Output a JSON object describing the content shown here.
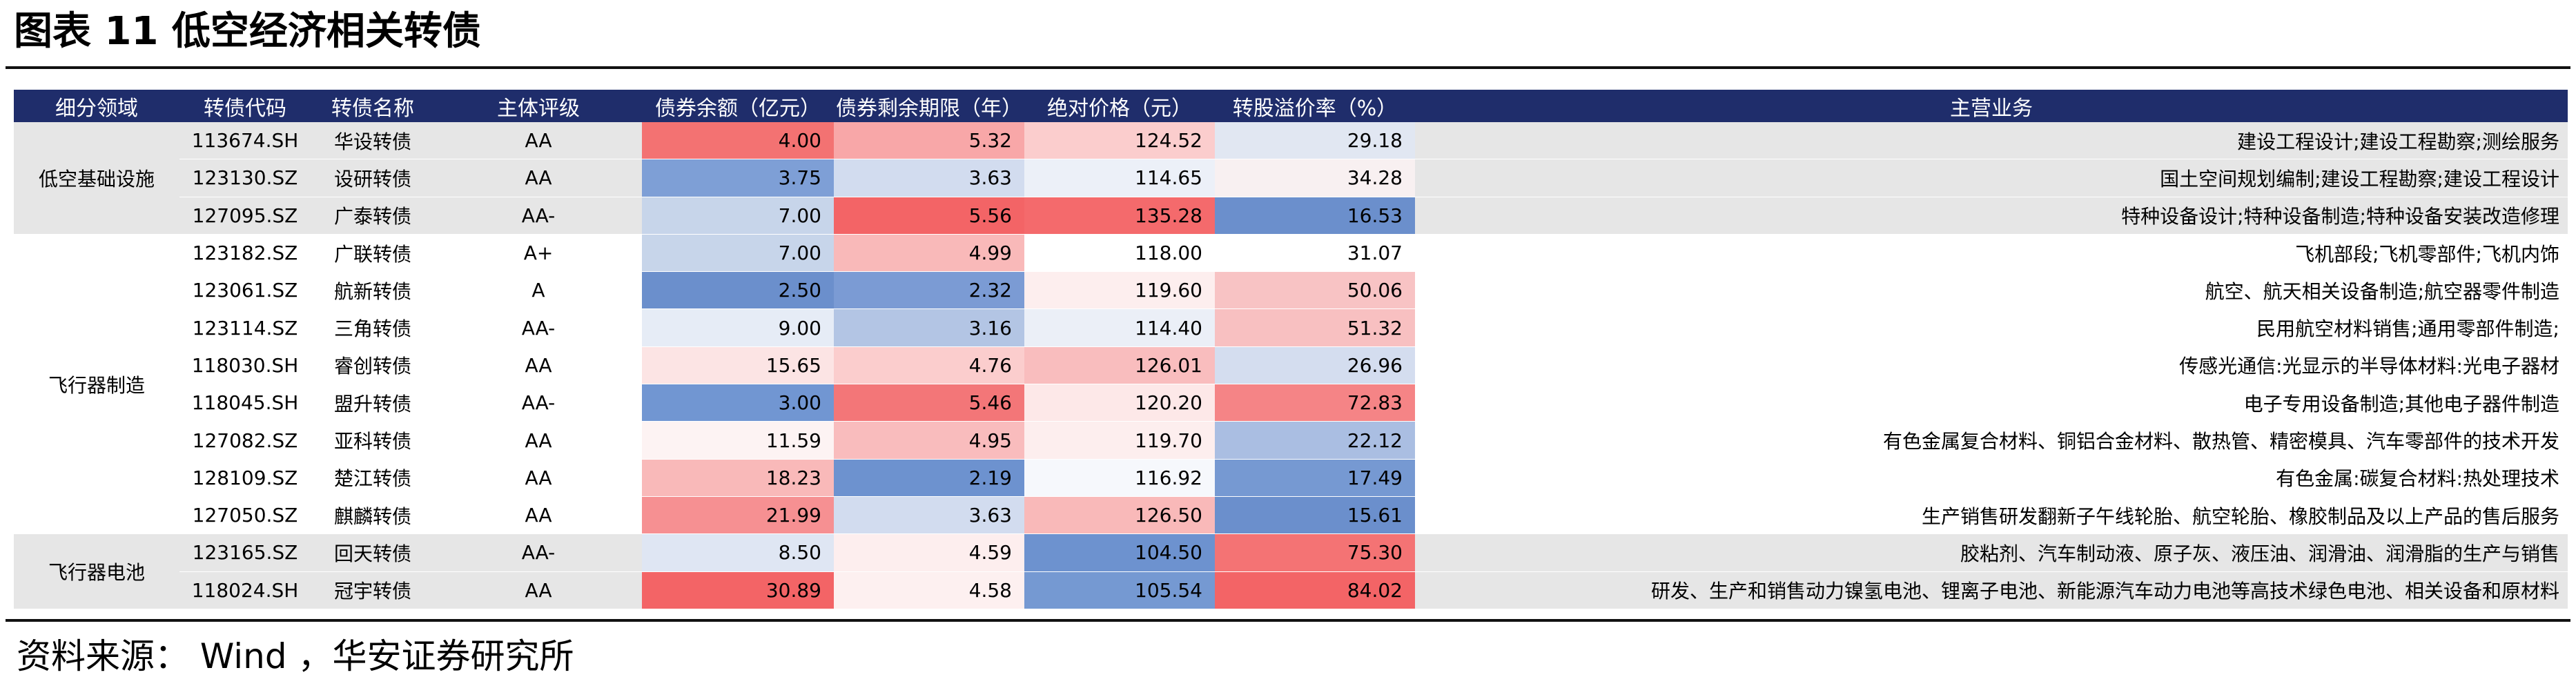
{
  "title": "图表 11 低空经济相关转债",
  "source": "资料来源： Wind ，华安证券研究所",
  "table": {
    "headers": [
      "细分领域",
      "转债代码",
      "转债名称",
      "主体评级",
      "债券余额（亿元）",
      "债券剩余期限（年）",
      "绝对价格（元）",
      "转股溢价率（%）",
      "主营业务"
    ],
    "groups": [
      {
        "sector": "低空基础设施",
        "rows": [
          {
            "code": "113674.SH",
            "name": "华设转债",
            "rating": "AA",
            "balance": "4.00",
            "balance_color": "#f37272",
            "term": "5.32",
            "term_color": "#f8a7a8",
            "price": "124.52",
            "price_color": "#fbcdcd",
            "premium": "29.18",
            "premium_color": "#e1e7f2",
            "business": "建设工程设计;建设工程勘察;测绘服务"
          },
          {
            "code": "123130.SZ",
            "name": "设研转债",
            "rating": "AA",
            "balance": "3.75",
            "balance_color": "#7e9fd6",
            "term": "3.63",
            "term_color": "#d2dcef",
            "price": "114.65",
            "price_color": "#ecf0f8",
            "premium": "34.28",
            "premium_color": "#f8f0f1",
            "business": "国土空间规划编制;建设工程勘察;建设工程设计"
          },
          {
            "code": "127095.SZ",
            "name": "广泰转债",
            "rating": "AA-",
            "balance": "7.00",
            "balance_color": "#c7d5ea",
            "term": "5.56",
            "term_color": "#f36466",
            "price": "135.28",
            "price_color": "#f46a6c",
            "premium": "16.53",
            "premium_color": "#6b8fcc",
            "business": "特种设备设计;特种设备制造;特种设备安装改造修理"
          }
        ]
      },
      {
        "sector": "飞行器制造",
        "rows": [
          {
            "code": "123182.SZ",
            "name": "广联转债",
            "rating": "A+",
            "balance": "7.00",
            "balance_color": "#c7d5ea",
            "term": "4.99",
            "term_color": "#f9b9b9",
            "price": "118.00",
            "price_color": "#ffffff",
            "premium": "31.07",
            "premium_color": "#ffffff",
            "business": "飞机部段;飞机零部件;飞机内饰"
          },
          {
            "code": "123061.SZ",
            "name": "航新转债",
            "rating": "A",
            "balance": "2.50",
            "balance_color": "#6b8fcc",
            "term": "2.32",
            "term_color": "#7b9bd4",
            "price": "119.60",
            "price_color": "#fdeeee",
            "premium": "50.06",
            "premium_color": "#f8c3c4",
            "business": "航空、航天相关设备制造;航空器零件制造"
          },
          {
            "code": "123114.SZ",
            "name": "三角转债",
            "rating": "AA-",
            "balance": "9.00",
            "balance_color": "#e6ecf6",
            "term": "3.16",
            "term_color": "#b3c5e4",
            "price": "114.40",
            "price_color": "#ebeff7",
            "premium": "51.32",
            "premium_color": "#f8c0c1",
            "business": "民用航空材料销售;通用零部件制造;"
          },
          {
            "code": "118030.SH",
            "name": "睿创转债",
            "rating": "AA",
            "balance": "15.65",
            "balance_color": "#fce4e4",
            "term": "4.76",
            "term_color": "#fbcdcd",
            "price": "126.01",
            "price_color": "#f9bdbe",
            "premium": "26.96",
            "premium_color": "#d4ddef",
            "business": "传感光通信:光显示的半导体材料:光电子器材"
          },
          {
            "code": "118045.SH",
            "name": "盟升转债",
            "rating": "AA-",
            "balance": "3.00",
            "balance_color": "#7196d2",
            "term": "5.46",
            "term_color": "#f37678",
            "price": "120.20",
            "price_color": "#fde8e8",
            "premium": "72.83",
            "premium_color": "#f58486",
            "business": "电子专用设备制造;其他电子器件制造"
          },
          {
            "code": "127082.SZ",
            "name": "亚科转债",
            "rating": "AA",
            "balance": "11.59",
            "balance_color": "#fdf3f3",
            "term": "4.95",
            "term_color": "#f9bcbd",
            "price": "119.70",
            "price_color": "#fdeeee",
            "premium": "22.12",
            "premium_color": "#aabee2",
            "business": "有色金属复合材料、铜铝合金材料、散热管、精密模具、汽车零部件的技术开发"
          },
          {
            "code": "128109.SZ",
            "name": "楚江转债",
            "rating": "AA",
            "balance": "18.23",
            "balance_color": "#f9b9b9",
            "term": "2.19",
            "term_color": "#6d92cf",
            "price": "116.92",
            "price_color": "#f6f8fc",
            "premium": "17.49",
            "premium_color": "#7699d2",
            "business": "有色金属:碳复合材料:热处理技术"
          },
          {
            "code": "127050.SZ",
            "name": "麒麟转债",
            "rating": "AA",
            "balance": "21.99",
            "balance_color": "#f69092",
            "term": "3.63",
            "term_color": "#d2dcef",
            "price": "126.50",
            "price_color": "#f9b9b9",
            "premium": "15.61",
            "premium_color": "#6b8fcc",
            "business": "生产销售研发翻新子午线轮胎、航空轮胎、橡胶制品及以上产品的售后服务"
          }
        ]
      },
      {
        "sector": "飞行器电池",
        "rows": [
          {
            "code": "123165.SZ",
            "name": "回天转债",
            "rating": "AA-",
            "balance": "8.50",
            "balance_color": "#dfe6f3",
            "term": "4.59",
            "term_color": "#fdeeee",
            "price": "104.50",
            "price_color": "#6d92cf",
            "premium": "75.30",
            "premium_color": "#f47374",
            "business": "胶粘剂、汽车制动液、原子灰、液压油、润滑油、润滑脂的生产与销售"
          },
          {
            "code": "118024.SH",
            "name": "冠宇转债",
            "rating": "AA",
            "balance": "30.89",
            "balance_color": "#f36466",
            "term": "4.58",
            "term_color": "#fdf0f0",
            "price": "105.54",
            "price_color": "#7599d2",
            "premium": "84.02",
            "premium_color": "#f36466",
            "business": "研发、生产和销售动力镍氢电池、锂离子电池、新能源汽车动力电池等高技术绿色电池、相关设备和原材料"
          }
        ]
      }
    ]
  }
}
